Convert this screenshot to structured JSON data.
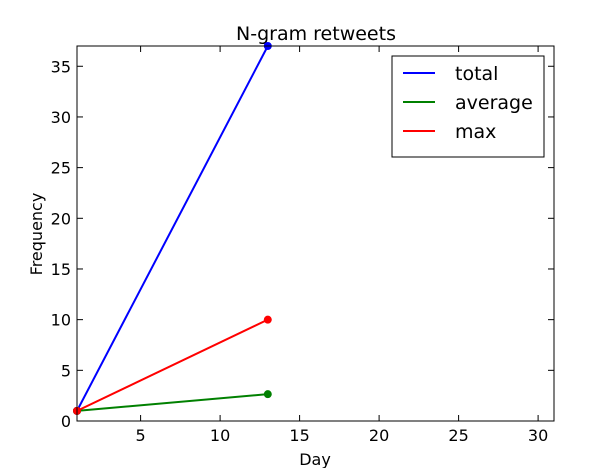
{
  "chart_data": {
    "type": "line",
    "title": "N-gram retweets",
    "xlabel": "Day",
    "ylabel": "Frequency",
    "xlim": [
      1,
      31
    ],
    "ylim": [
      0,
      37
    ],
    "x_ticks": [
      5,
      10,
      15,
      20,
      25,
      30
    ],
    "y_ticks": [
      0,
      5,
      10,
      15,
      20,
      25,
      30,
      35
    ],
    "grid": false,
    "legend_position": "top-right",
    "series": [
      {
        "name": "total",
        "color": "#0000ff",
        "x": [
          1,
          13
        ],
        "y": [
          1,
          37
        ]
      },
      {
        "name": "average",
        "color": "#008000",
        "x": [
          1,
          13
        ],
        "y": [
          1,
          2.65
        ]
      },
      {
        "name": "max",
        "color": "#ff0000",
        "x": [
          1,
          13
        ],
        "y": [
          1,
          10
        ]
      }
    ]
  }
}
